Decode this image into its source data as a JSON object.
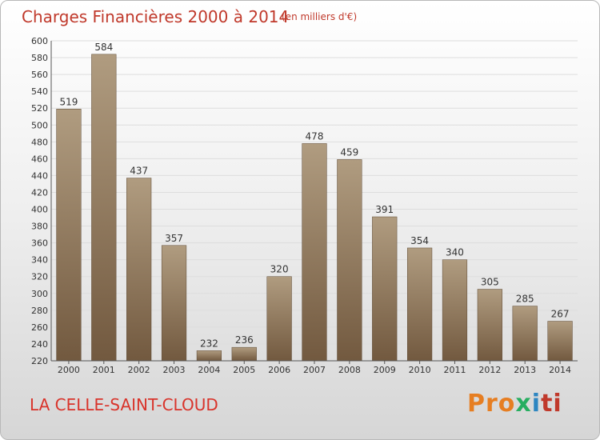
{
  "title": "Charges Financières 2000 à 2014",
  "subtitle": "(en milliers d'€)",
  "location": "LA CELLE-SAINT-CLOUD",
  "logo": {
    "parts": [
      "Pro",
      "x",
      "i",
      "ti"
    ]
  },
  "colors": {
    "bar_top": "#b09c80",
    "bar_bottom": "#72593f",
    "title": "#c0392b"
  },
  "chart_data": {
    "type": "bar",
    "categories": [
      "2000",
      "2001",
      "2002",
      "2003",
      "2004",
      "2005",
      "2006",
      "2007",
      "2008",
      "2009",
      "2010",
      "2011",
      "2012",
      "2013",
      "2014"
    ],
    "values": [
      519,
      584,
      437,
      357,
      232,
      236,
      320,
      478,
      459,
      391,
      354,
      340,
      305,
      285,
      267
    ],
    "ylim": [
      220,
      600
    ],
    "yticks": [
      220,
      240,
      260,
      280,
      300,
      320,
      340,
      360,
      380,
      400,
      420,
      440,
      460,
      480,
      500,
      520,
      540,
      560,
      580,
      600
    ],
    "grid": true
  }
}
